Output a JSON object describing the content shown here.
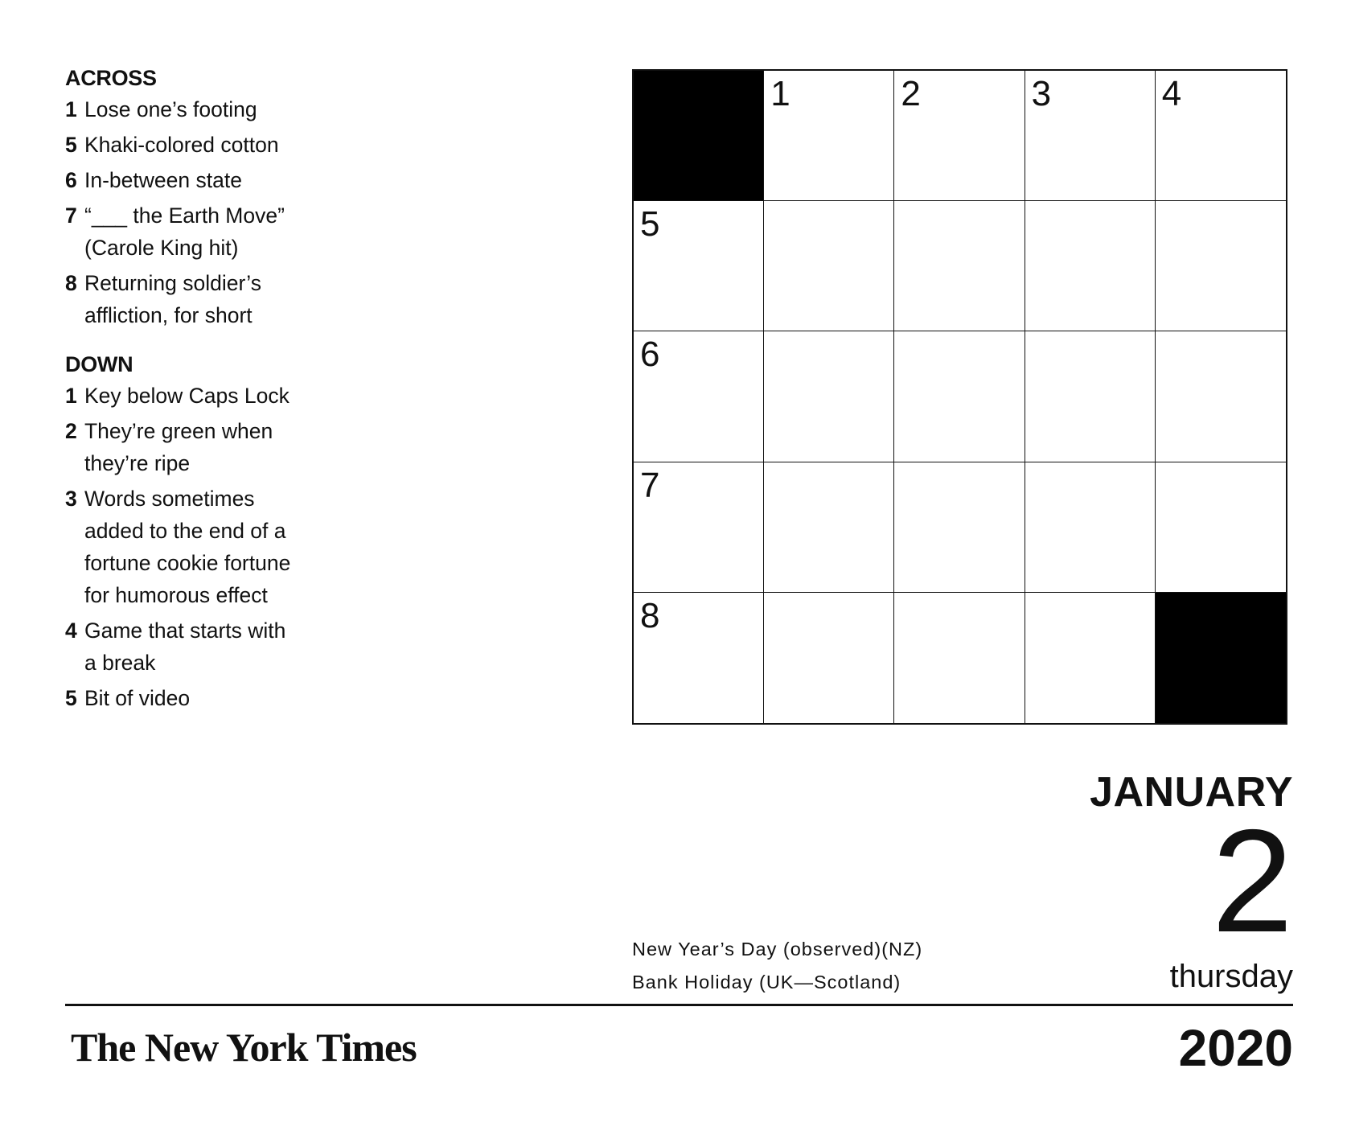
{
  "clues": {
    "across_heading": "ACROSS",
    "across": [
      {
        "num": "1",
        "lines": [
          "Lose one’s footing"
        ]
      },
      {
        "num": "5",
        "lines": [
          "Khaki-colored cotton"
        ]
      },
      {
        "num": "6",
        "lines": [
          "In-between state"
        ]
      },
      {
        "num": "7",
        "lines": [
          "“___ the Earth Move”",
          "(Carole King hit)"
        ]
      },
      {
        "num": "8",
        "lines": [
          "Returning soldier’s",
          "affliction, for short"
        ]
      }
    ],
    "down_heading": "DOWN",
    "down": [
      {
        "num": "1",
        "lines": [
          "Key below Caps Lock"
        ]
      },
      {
        "num": "2",
        "lines": [
          "They’re green when",
          "they’re ripe"
        ]
      },
      {
        "num": "3",
        "lines": [
          "Words sometimes",
          "added to the end of a",
          "fortune cookie fortune",
          "for humorous effect"
        ]
      },
      {
        "num": "4",
        "lines": [
          "Game that starts with",
          "a break"
        ]
      },
      {
        "num": "5",
        "lines": [
          "Bit of video"
        ]
      }
    ]
  },
  "grid": [
    [
      {
        "black": true
      },
      {
        "num": "1"
      },
      {
        "num": "2"
      },
      {
        "num": "3"
      },
      {
        "num": "4"
      }
    ],
    [
      {
        "num": "5"
      },
      {},
      {},
      {},
      {}
    ],
    [
      {
        "num": "6"
      },
      {},
      {},
      {},
      {}
    ],
    [
      {
        "num": "7"
      },
      {},
      {},
      {},
      {}
    ],
    [
      {
        "num": "8"
      },
      {},
      {},
      {},
      {
        "black": true
      }
    ]
  ],
  "holidays": [
    "New Year’s Day (observed)(NZ)",
    "Bank Holiday (UK—Scotland)"
  ],
  "date": {
    "month": "JANUARY",
    "day": "2",
    "weekday": "thursday",
    "year": "2020"
  },
  "brand": {
    "logo": "The New York Times"
  }
}
